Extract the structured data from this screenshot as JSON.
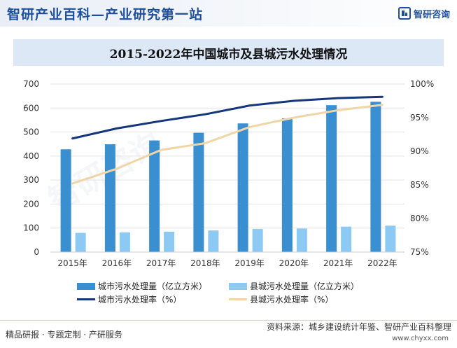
{
  "header": {
    "title": "智研产业百科—产业研究第一站",
    "logo_text": "智研咨询"
  },
  "watermark_text": "智研咨询",
  "chart_data": {
    "type": "bar+line",
    "title": "2015-2022年中国城市及县城污水处理情况",
    "categories": [
      "2015年",
      "2016年",
      "2017年",
      "2018年",
      "2019年",
      "2020年",
      "2021年",
      "2022年"
    ],
    "bar_series": [
      {
        "name": "城市污水处理量（亿立方米）",
        "color": "#3a8fd1",
        "values": [
          428,
          449,
          465,
          497,
          536,
          557,
          612,
          626
        ]
      },
      {
        "name": "县城污水处理量（亿立方米）",
        "color": "#8cc9f3",
        "values": [
          80,
          82,
          85,
          90,
          96,
          98,
          106,
          110
        ]
      }
    ],
    "line_series": [
      {
        "name": "城市污水处理率（%）",
        "color": "#15367a",
        "values": [
          91.9,
          93.4,
          94.5,
          95.5,
          96.8,
          97.5,
          97.9,
          98.1
        ]
      },
      {
        "name": "县城污水处理率（%）",
        "color": "#f0d6a6",
        "values": [
          85.2,
          87.4,
          90.2,
          91.2,
          93.6,
          95.0,
          96.1,
          96.9
        ]
      }
    ],
    "y_left": {
      "min": 0,
      "max": 700,
      "step": 100,
      "ticks": [
        "0",
        "100",
        "200",
        "300",
        "400",
        "500",
        "600",
        "700"
      ]
    },
    "y_right": {
      "min": 75,
      "max": 100,
      "step": 5,
      "ticks": [
        "75%",
        "80%",
        "85%",
        "90%",
        "95%",
        "100%"
      ]
    }
  },
  "footer": {
    "left": "精品研报 · 专题定制 · 产研服务",
    "source": "资料来源：城乡建设统计年鉴、智研产业百科整理",
    "website": "www.chyxx.com"
  }
}
